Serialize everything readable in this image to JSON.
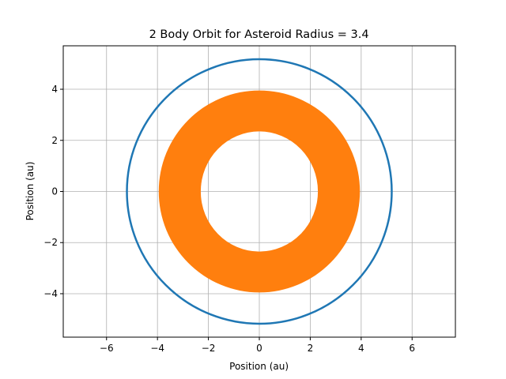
{
  "chart_data": {
    "type": "line",
    "title": "2 Body Orbit for Asteroid Radius = 3.4",
    "xlabel": "Position (au)",
    "ylabel": "Position (au)",
    "xlim": [
      -7.7,
      7.7
    ],
    "ylim": [
      -5.7,
      5.7
    ],
    "xticks": [
      -6,
      -4,
      -2,
      0,
      2,
      4,
      6
    ],
    "yticks": [
      -4,
      -2,
      0,
      2,
      4
    ],
    "xtick_labels": [
      "−6",
      "−4",
      "−2",
      "0",
      "2",
      "4",
      "6"
    ],
    "ytick_labels": [
      "−4",
      "−2",
      "0",
      "2",
      "4"
    ],
    "grid": true,
    "series": [
      {
        "shape": "circle",
        "center": [
          0,
          0
        ],
        "radius": 5.2,
        "color": "#1f77b4"
      },
      {
        "shape": "annulus",
        "center": [
          0,
          0
        ],
        "inner_radius_x": 2.3,
        "inner_radius_y": 2.35,
        "outer_radius": 3.95,
        "color": "#ff7f0e"
      }
    ]
  }
}
